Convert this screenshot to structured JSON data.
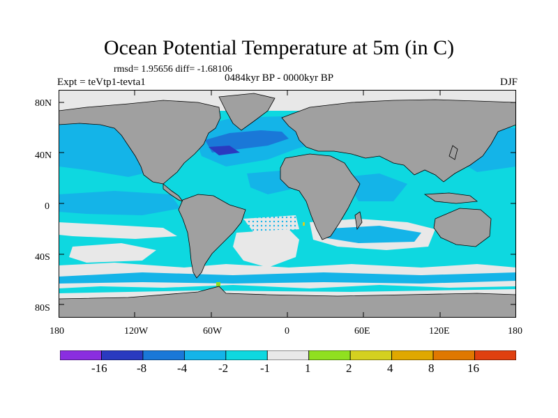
{
  "title": "Ocean Potential Temperature at 5m (in C)",
  "stats": "rmsd= 1.95656 diff= -1.68106",
  "experiment": "Expt = teVtp1-tevta1",
  "period": "0484kyr BP - 0000kyr BP",
  "season": "DJF",
  "axes": {
    "y_ticks": [
      "80N",
      "40N",
      "0",
      "40S",
      "80S"
    ],
    "x_ticks": [
      "180",
      "120W",
      "60W",
      "0",
      "60E",
      "120E",
      "180"
    ]
  },
  "colors": {
    "land": "#a0a0a0",
    "ocean_bg": "#0ed8e0",
    "near_zero": "#e8e8e8",
    "c_-2_-1": "#0ed8e0",
    "c_-4_-2": "#14b4e8",
    "c_-8_-4": "#1a78d8",
    "c_-16_-8": "#2a3ac0",
    "c_1_2": "#90e020",
    "c_2_4": "#d4d020"
  },
  "legend": {
    "bins": [
      {
        "color": "#8a2ee0"
      },
      {
        "color": "#2a3ac0"
      },
      {
        "color": "#1a78d8"
      },
      {
        "color": "#14b4e8"
      },
      {
        "color": "#0ed8e0"
      },
      {
        "color": "#e8e8e8"
      },
      {
        "color": "#90e020"
      },
      {
        "color": "#d4d020"
      },
      {
        "color": "#e0a800"
      },
      {
        "color": "#e07800"
      },
      {
        "color": "#e04010"
      }
    ],
    "labels": [
      "-16",
      "-8",
      "-4",
      "-2",
      "-1",
      "1",
      "2",
      "4",
      "8",
      "16"
    ]
  }
}
